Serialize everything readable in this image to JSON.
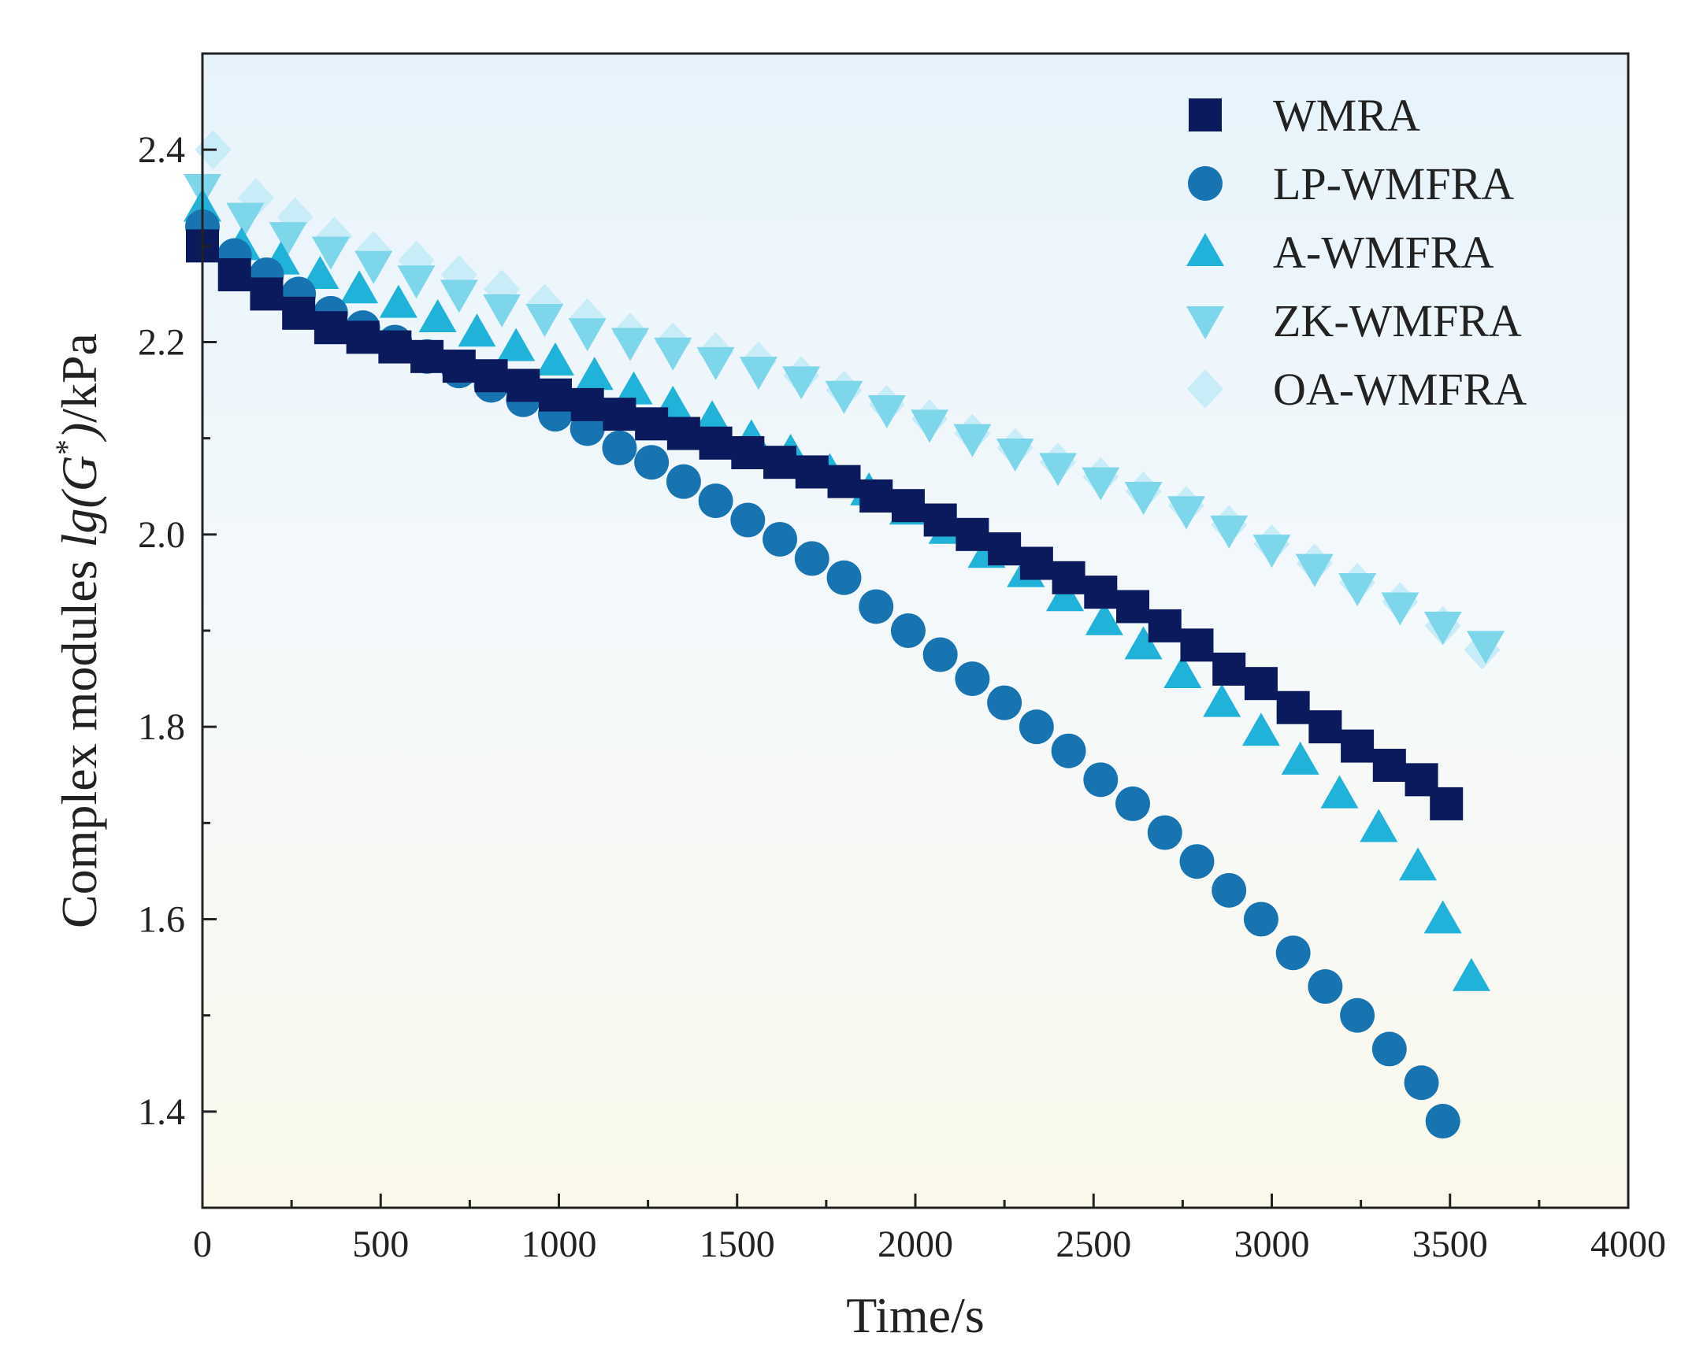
{
  "chart_data": {
    "type": "scatter",
    "title": "",
    "xlabel": "Time/s",
    "ylabel": {
      "prefix": "Complex modules ",
      "func": "lg(G",
      "sup": "*",
      "close": ")",
      "unit": "/kPa"
    },
    "xlim": [
      0,
      4000
    ],
    "ylim": [
      1.3,
      2.5
    ],
    "xticks": [
      0,
      500,
      1000,
      1500,
      2000,
      2500,
      3000,
      3500,
      4000
    ],
    "yticks": [
      1.4,
      1.6,
      1.8,
      2.0,
      2.2,
      2.4
    ],
    "ytick_labels": [
      "1.4",
      "1.6",
      "1.8",
      "2.0",
      "2.2",
      "2.4"
    ],
    "grid": false,
    "legend_position": "top-right",
    "series": [
      {
        "name": "WMRA",
        "marker": "square",
        "color": "#0b1a5c",
        "x": [
          0,
          90,
          180,
          270,
          360,
          450,
          540,
          630,
          720,
          810,
          900,
          990,
          1080,
          1170,
          1260,
          1350,
          1440,
          1530,
          1620,
          1710,
          1800,
          1890,
          1980,
          2070,
          2160,
          2250,
          2340,
          2430,
          2520,
          2610,
          2700,
          2790,
          2880,
          2970,
          3060,
          3150,
          3240,
          3330,
          3420,
          3490
        ],
        "y": [
          2.3,
          2.27,
          2.25,
          2.23,
          2.215,
          2.205,
          2.195,
          2.185,
          2.175,
          2.165,
          2.155,
          2.145,
          2.135,
          2.125,
          2.115,
          2.105,
          2.095,
          2.085,
          2.075,
          2.065,
          2.055,
          2.04,
          2.03,
          2.015,
          2.0,
          1.985,
          1.97,
          1.955,
          1.94,
          1.925,
          1.905,
          1.885,
          1.86,
          1.845,
          1.82,
          1.8,
          1.78,
          1.76,
          1.745,
          1.72
        ]
      },
      {
        "name": "LP-WMFRA",
        "marker": "circle",
        "color": "#1874b0",
        "x": [
          0,
          90,
          180,
          270,
          360,
          450,
          540,
          630,
          720,
          810,
          900,
          990,
          1080,
          1170,
          1260,
          1350,
          1440,
          1530,
          1620,
          1710,
          1800,
          1890,
          1980,
          2070,
          2160,
          2250,
          2340,
          2430,
          2520,
          2610,
          2700,
          2790,
          2880,
          2970,
          3060,
          3150,
          3240,
          3330,
          3420,
          3480
        ],
        "y": [
          2.32,
          2.29,
          2.27,
          2.25,
          2.23,
          2.215,
          2.2,
          2.185,
          2.17,
          2.155,
          2.14,
          2.125,
          2.11,
          2.09,
          2.075,
          2.055,
          2.035,
          2.015,
          1.995,
          1.975,
          1.955,
          1.925,
          1.9,
          1.875,
          1.85,
          1.825,
          1.8,
          1.775,
          1.745,
          1.72,
          1.69,
          1.66,
          1.63,
          1.6,
          1.565,
          1.53,
          1.5,
          1.465,
          1.43,
          1.39
        ]
      },
      {
        "name": "A-WMFRA",
        "marker": "triangle-up",
        "color": "#20b2d8",
        "x": [
          0,
          110,
          220,
          330,
          440,
          550,
          660,
          770,
          880,
          990,
          1100,
          1210,
          1320,
          1430,
          1540,
          1650,
          1760,
          1870,
          1980,
          2090,
          2200,
          2310,
          2420,
          2530,
          2640,
          2750,
          2860,
          2970,
          3080,
          3190,
          3300,
          3410,
          3480,
          3560
        ],
        "y": [
          2.34,
          2.3,
          2.285,
          2.27,
          2.255,
          2.24,
          2.225,
          2.21,
          2.195,
          2.18,
          2.165,
          2.15,
          2.135,
          2.12,
          2.1,
          2.085,
          2.065,
          2.045,
          2.025,
          2.005,
          1.98,
          1.96,
          1.935,
          1.91,
          1.885,
          1.855,
          1.825,
          1.795,
          1.765,
          1.73,
          1.695,
          1.655,
          1.6,
          1.54
        ]
      },
      {
        "name": "ZK-WMFRA",
        "marker": "triangle-down",
        "color": "#7ed6ea",
        "x": [
          0,
          120,
          240,
          360,
          480,
          600,
          720,
          840,
          960,
          1080,
          1200,
          1320,
          1440,
          1560,
          1680,
          1800,
          1920,
          2040,
          2160,
          2280,
          2400,
          2520,
          2640,
          2760,
          2880,
          3000,
          3120,
          3240,
          3360,
          3480,
          3600
        ],
        "y": [
          2.36,
          2.33,
          2.31,
          2.295,
          2.28,
          2.265,
          2.25,
          2.235,
          2.225,
          2.21,
          2.2,
          2.19,
          2.18,
          2.17,
          2.16,
          2.145,
          2.13,
          2.115,
          2.1,
          2.085,
          2.07,
          2.055,
          2.04,
          2.025,
          2.005,
          1.985,
          1.965,
          1.945,
          1.925,
          1.905,
          1.885
        ]
      },
      {
        "name": "OA-WMFRA",
        "marker": "diamond",
        "color": "#c8ecf8",
        "x": [
          30,
          150,
          260,
          370,
          480,
          600,
          720,
          840,
          960,
          1080,
          1200,
          1320,
          1440,
          1560,
          1680,
          1800,
          1920,
          2040,
          2160,
          2280,
          2400,
          2520,
          2640,
          2760,
          2880,
          3000,
          3120,
          3240,
          3360,
          3480,
          3590
        ],
        "y": [
          2.4,
          2.35,
          2.33,
          2.31,
          2.295,
          2.285,
          2.27,
          2.255,
          2.24,
          2.225,
          2.21,
          2.2,
          2.19,
          2.18,
          2.165,
          2.15,
          2.135,
          2.12,
          2.105,
          2.09,
          2.075,
          2.06,
          2.045,
          2.03,
          2.01,
          1.99,
          1.97,
          1.95,
          1.93,
          1.905,
          1.88
        ]
      }
    ]
  }
}
